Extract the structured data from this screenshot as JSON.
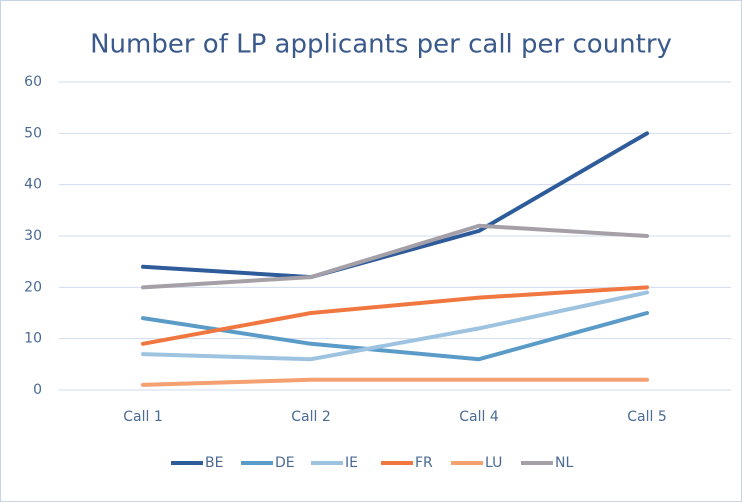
{
  "chart_data": {
    "type": "line",
    "title": "Number of LP applicants per call per country",
    "categories": [
      "Call 1",
      "Call 2",
      "Call 4",
      "Call 5"
    ],
    "series": [
      {
        "name": "BE",
        "color": "#2e5b9a",
        "values": [
          24,
          22,
          31,
          50
        ]
      },
      {
        "name": "DE",
        "color": "#5b9bc8",
        "values": [
          14,
          9,
          6,
          15
        ]
      },
      {
        "name": "IE",
        "color": "#9dc3e0",
        "values": [
          7,
          6,
          12,
          19
        ]
      },
      {
        "name": "FR",
        "color": "#f07840",
        "values": [
          9,
          15,
          18,
          20
        ]
      },
      {
        "name": "LU",
        "color": "#f4a070",
        "values": [
          1,
          2,
          2,
          2
        ]
      },
      {
        "name": "NL",
        "color": "#a5a0a8",
        "values": [
          20,
          22,
          32,
          30
        ]
      }
    ],
    "ylim": [
      0,
      60
    ],
    "yticks": [
      0,
      10,
      20,
      30,
      40,
      50,
      60
    ],
    "grid": true,
    "legend": "bottom"
  }
}
